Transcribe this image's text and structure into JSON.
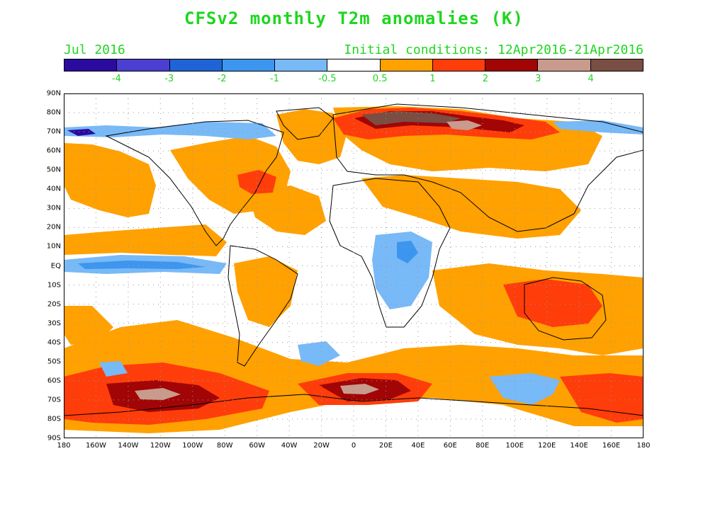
{
  "header": {
    "title": "CFSv2 monthly T2m anomalies (K)",
    "valid_month": "Jul 2016",
    "initial_conditions": "Initial conditions: 12Apr2016-21Apr2016"
  },
  "colorbar": {
    "colors": [
      "#2b0aa0",
      "#4a3fd0",
      "#1e64d6",
      "#3c96f0",
      "#78b9f7",
      "#ffffff",
      "#ffa100",
      "#ff3d0a",
      "#a10505",
      "#c89b8c",
      "#7a4e43"
    ],
    "labels": [
      "-4",
      "-3",
      "-2",
      "-1",
      "-0.5",
      "0.5",
      "1",
      "2",
      "3",
      "4"
    ]
  },
  "map": {
    "lat_labels": [
      "90N",
      "80N",
      "70N",
      "60N",
      "50N",
      "40N",
      "30N",
      "20N",
      "10N",
      "EQ",
      "10S",
      "20S",
      "30S",
      "40S",
      "50S",
      "60S",
      "70S",
      "80S",
      "90S"
    ],
    "lon_labels": [
      "180",
      "160W",
      "140W",
      "120W",
      "100W",
      "80W",
      "60W",
      "40W",
      "20W",
      "0",
      "20E",
      "40E",
      "60E",
      "80E",
      "100E",
      "120E",
      "140E",
      "160E",
      "180"
    ]
  }
}
